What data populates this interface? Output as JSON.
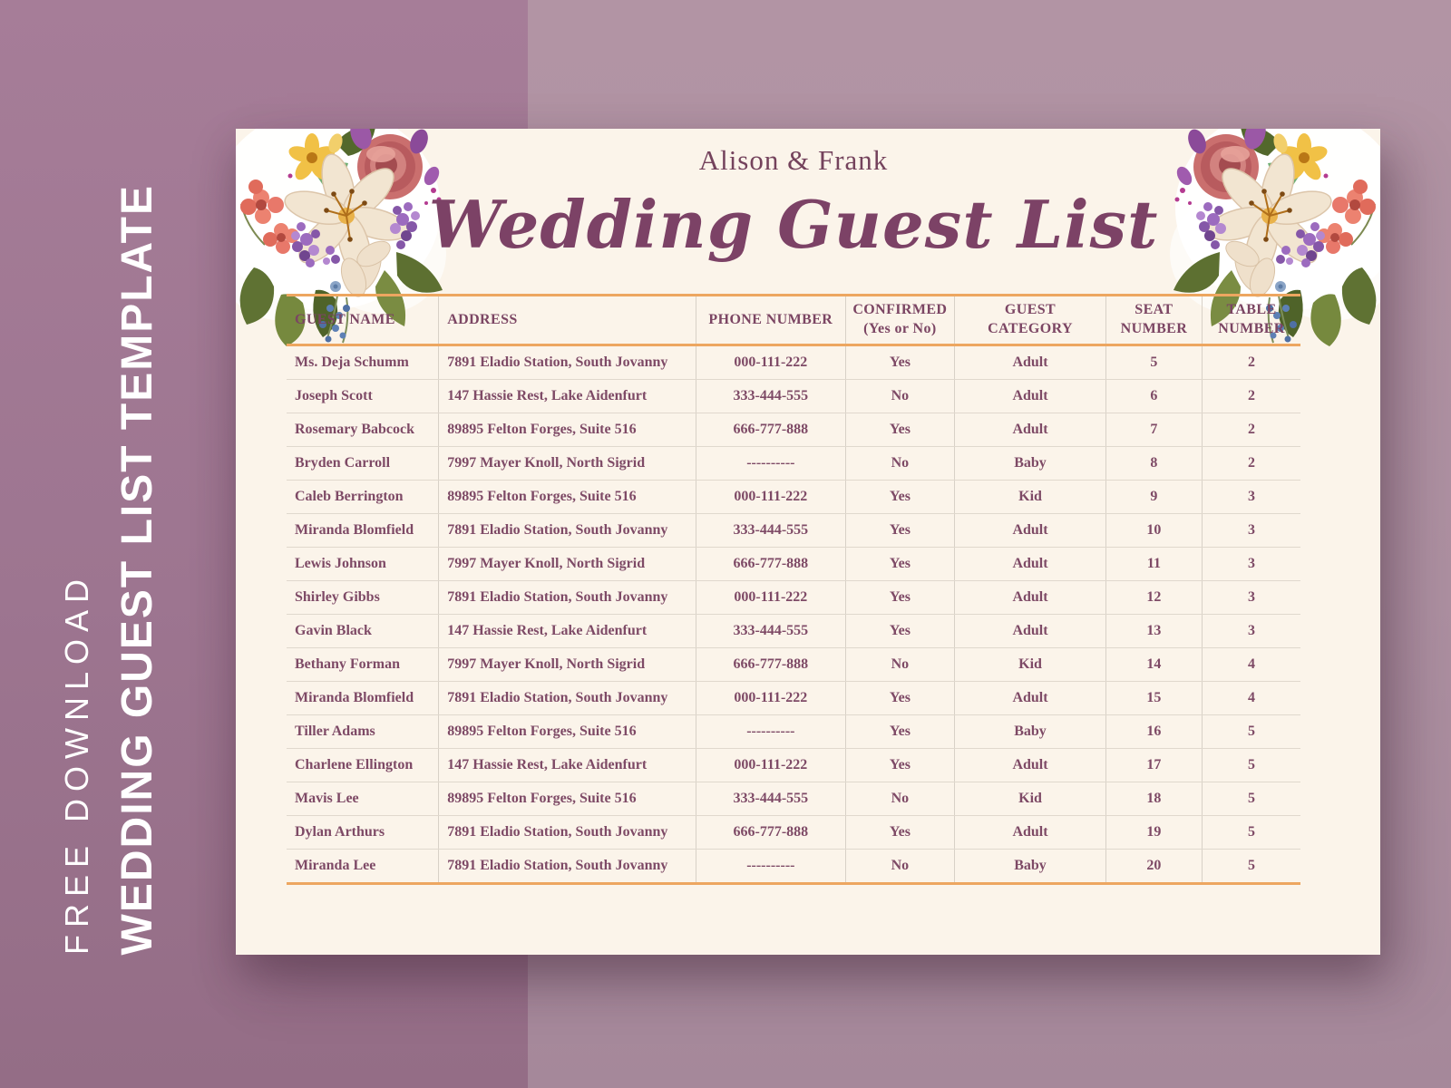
{
  "sidebar": {
    "free_download": "FREE DOWNLOAD",
    "template_title": "WEDDING GUEST LIST TEMPLATE"
  },
  "header": {
    "couple": "Alison & Frank",
    "title": "Wedding Guest List"
  },
  "table": {
    "columns": [
      {
        "id": "guest-name",
        "label": "GUEST NAME",
        "align": "left",
        "width": 15.0
      },
      {
        "id": "address",
        "label": "ADDRESS",
        "align": "left",
        "width": 25.4
      },
      {
        "id": "phone-number",
        "label": "PHONE NUMBER",
        "align": "center",
        "width": 14.7
      },
      {
        "id": "confirmed",
        "label": "CONFIRMED\n(Yes or No)",
        "align": "center",
        "width": 10.8
      },
      {
        "id": "guest-category",
        "label": "GUEST CATEGORY",
        "align": "center",
        "width": 14.9
      },
      {
        "id": "seat-number",
        "label": "SEAT\nNUMBER",
        "align": "center",
        "width": 9.5
      },
      {
        "id": "table-number",
        "label": "TABLE\nNUMBER",
        "align": "center",
        "width": 9.7
      }
    ],
    "rows": [
      [
        "Ms. Deja Schumm",
        "7891 Eladio Station, South Jovanny",
        "000-111-222",
        "Yes",
        "Adult",
        "5",
        "2"
      ],
      [
        "Joseph Scott",
        "147 Hassie Rest, Lake Aidenfurt",
        "333-444-555",
        "No",
        "Adult",
        "6",
        "2"
      ],
      [
        "Rosemary Babcock",
        "89895 Felton Forges, Suite 516",
        "666-777-888",
        "Yes",
        "Adult",
        "7",
        "2"
      ],
      [
        "Bryden Carroll",
        "7997 Mayer Knoll, North Sigrid",
        "----------",
        "No",
        "Baby",
        "8",
        "2"
      ],
      [
        "Caleb Berrington",
        "89895 Felton Forges, Suite 516",
        "000-111-222",
        "Yes",
        "Kid",
        "9",
        "3"
      ],
      [
        "Miranda Blomfield",
        "7891 Eladio Station, South Jovanny",
        "333-444-555",
        "Yes",
        "Adult",
        "10",
        "3"
      ],
      [
        "Lewis Johnson",
        "7997 Mayer Knoll, North Sigrid",
        "666-777-888",
        "Yes",
        "Adult",
        "11",
        "3"
      ],
      [
        "Shirley Gibbs",
        "7891 Eladio Station, South Jovanny",
        "000-111-222",
        "Yes",
        "Adult",
        "12",
        "3"
      ],
      [
        "Gavin Black",
        "147 Hassie Rest, Lake Aidenfurt",
        "333-444-555",
        "Yes",
        "Adult",
        "13",
        "3"
      ],
      [
        "Bethany Forman",
        "7997 Mayer Knoll, North Sigrid",
        "666-777-888",
        "No",
        "Kid",
        "14",
        "4"
      ],
      [
        "Miranda Blomfield",
        "7891 Eladio Station, South Jovanny",
        "000-111-222",
        "Yes",
        "Adult",
        "15",
        "4"
      ],
      [
        "Tiller Adams",
        "89895 Felton Forges, Suite 516",
        "----------",
        "Yes",
        "Baby",
        "16",
        "5"
      ],
      [
        "Charlene Ellington",
        "147 Hassie Rest, Lake Aidenfurt",
        "000-111-222",
        "Yes",
        "Adult",
        "17",
        "5"
      ],
      [
        "Mavis Lee",
        "89895 Felton Forges, Suite 516",
        "333-444-555",
        "No",
        "Kid",
        "18",
        "5"
      ],
      [
        "Dylan Arthurs",
        "7891 Eladio Station, South Jovanny",
        "666-777-888",
        "Yes",
        "Adult",
        "19",
        "5"
      ],
      [
        "Miranda Lee",
        "7891 Eladio Station, South Jovanny",
        "----------",
        "No",
        "Baby",
        "20",
        "5"
      ]
    ]
  },
  "colors": {
    "accent_orange": "#eda660",
    "plum_text": "#7b4563",
    "card_background": "#fbf4ea",
    "sidebar_mauve": "#9d7590",
    "page_background": "#ad90a1",
    "sidebar_text": "#ffffff"
  }
}
